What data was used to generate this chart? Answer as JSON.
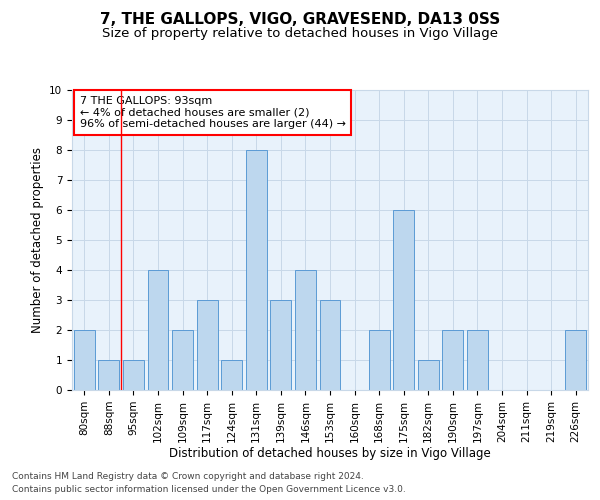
{
  "title": "7, THE GALLOPS, VIGO, GRAVESEND, DA13 0SS",
  "subtitle": "Size of property relative to detached houses in Vigo Village",
  "xlabel": "Distribution of detached houses by size in Vigo Village",
  "ylabel": "Number of detached properties",
  "categories": [
    "80sqm",
    "88sqm",
    "95sqm",
    "102sqm",
    "109sqm",
    "117sqm",
    "124sqm",
    "131sqm",
    "139sqm",
    "146sqm",
    "153sqm",
    "160sqm",
    "168sqm",
    "175sqm",
    "182sqm",
    "190sqm",
    "197sqm",
    "204sqm",
    "211sqm",
    "219sqm",
    "226sqm"
  ],
  "values": [
    2,
    1,
    1,
    4,
    2,
    3,
    1,
    8,
    3,
    4,
    3,
    0,
    2,
    6,
    1,
    2,
    2,
    0,
    0,
    0,
    2
  ],
  "bar_color": "#BDD7EE",
  "bar_edge_color": "#5B9BD5",
  "annotation_title": "7 THE GALLOPS: 93sqm",
  "annotation_line1": "← 4% of detached houses are smaller (2)",
  "annotation_line2": "96% of semi-detached houses are larger (44) →",
  "annotation_box_color": "#FF0000",
  "ylim": [
    0,
    10
  ],
  "yticks": [
    0,
    1,
    2,
    3,
    4,
    5,
    6,
    7,
    8,
    9,
    10
  ],
  "footer1": "Contains HM Land Registry data © Crown copyright and database right 2024.",
  "footer2": "Contains public sector information licensed under the Open Government Licence v3.0.",
  "background_color": "#FFFFFF",
  "plot_bg_color": "#E8F2FB",
  "grid_color": "#C8D8E8",
  "title_fontsize": 11,
  "subtitle_fontsize": 9.5,
  "axis_label_fontsize": 8.5,
  "tick_fontsize": 7.5,
  "annotation_fontsize": 8,
  "footer_fontsize": 6.5
}
